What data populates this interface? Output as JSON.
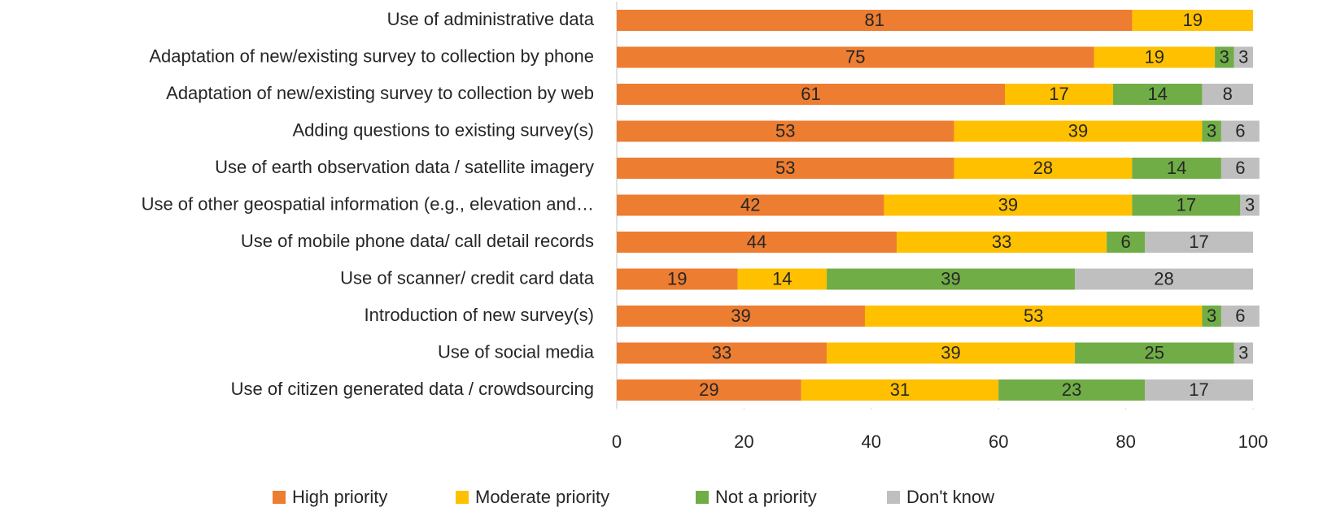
{
  "chart_data": {
    "type": "stacked_bar_horizontal",
    "categories": [
      "Use of administrative data",
      "Adaptation of new/existing survey to collection by phone",
      "Adaptation of new/existing survey to collection by web",
      "Adding questions to existing survey(s)",
      "Use of earth observation data / satellite imagery",
      "Use of other geospatial information (e.g., elevation and…",
      "Use of mobile phone data/ call detail records",
      "Use of scanner/ credit card data",
      "Introduction of new survey(s)",
      "Use of social media",
      "Use of citizen generated data / crowdsourcing"
    ],
    "series": [
      {
        "name": "High priority",
        "color": "#ed7d31",
        "values": [
          81,
          75,
          61,
          53,
          53,
          42,
          44,
          19,
          39,
          33,
          29
        ]
      },
      {
        "name": "Moderate priority",
        "color": "#ffc000",
        "values": [
          19,
          19,
          17,
          39,
          28,
          39,
          33,
          14,
          53,
          39,
          31
        ]
      },
      {
        "name": "Not a priority",
        "color": "#70ad47",
        "values": [
          null,
          3,
          14,
          3,
          14,
          17,
          6,
          39,
          3,
          25,
          23
        ]
      },
      {
        "name": "Don't know",
        "color": "#bfbfbf",
        "values": [
          null,
          3,
          8,
          6,
          6,
          3,
          17,
          28,
          6,
          3,
          17
        ]
      }
    ],
    "xlim": [
      0,
      100
    ],
    "xticks": [
      0,
      20,
      40,
      60,
      80,
      100
    ],
    "legend": "bottom"
  }
}
